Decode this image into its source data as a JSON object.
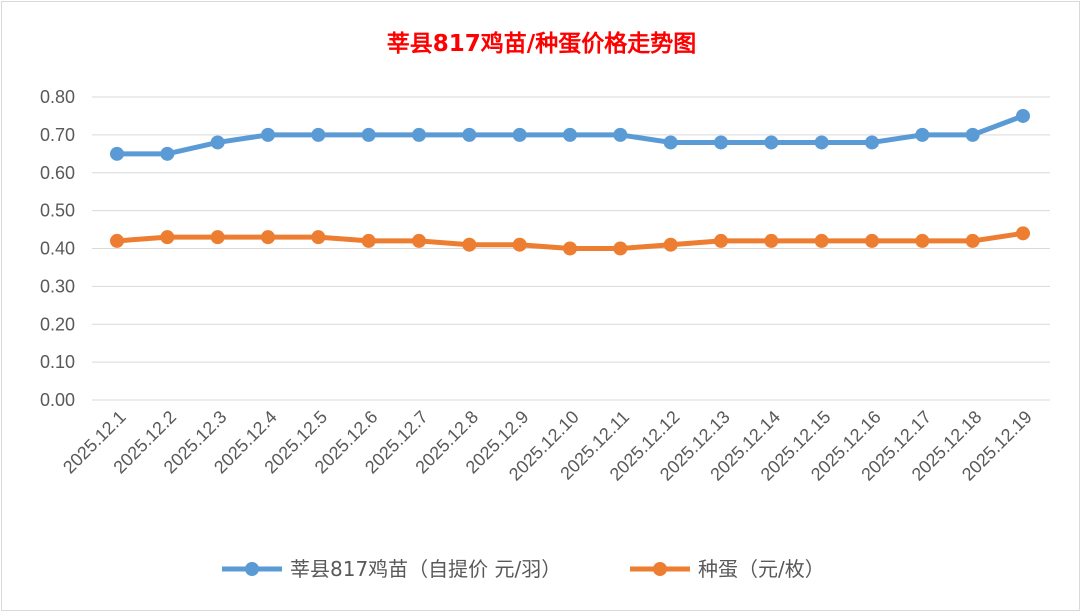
{
  "chart_data": {
    "type": "line",
    "title": "莘县817鸡苗/种蛋价格走势图",
    "categories": [
      "2025.12.1",
      "2025.12.2",
      "2025.12.3",
      "2025.12.4",
      "2025.12.5",
      "2025.12.6",
      "2025.12.7",
      "2025.12.8",
      "2025.12.9",
      "2025.12.10",
      "2025.12.11",
      "2025.12.12",
      "2025.12.13",
      "2025.12.14",
      "2025.12.15",
      "2025.12.16",
      "2025.12.17",
      "2025.12.18",
      "2025.12.19"
    ],
    "series": [
      {
        "name": "莘县817鸡苗（自提价 元/羽）",
        "color": "#5b9bd5",
        "values": [
          0.65,
          0.65,
          0.68,
          0.7,
          0.7,
          0.7,
          0.7,
          0.7,
          0.7,
          0.7,
          0.7,
          0.68,
          0.68,
          0.68,
          0.68,
          0.68,
          0.7,
          0.7,
          0.75
        ]
      },
      {
        "name": "种蛋（元/枚）",
        "color": "#ed7d31",
        "values": [
          0.42,
          0.43,
          0.43,
          0.43,
          0.43,
          0.42,
          0.42,
          0.41,
          0.41,
          0.4,
          0.4,
          0.41,
          0.42,
          0.42,
          0.42,
          0.42,
          0.42,
          0.42,
          0.44
        ]
      }
    ],
    "ylim": [
      0,
      0.8
    ],
    "yticks": [
      "0.00",
      "0.10",
      "0.20",
      "0.30",
      "0.40",
      "0.50",
      "0.60",
      "0.70",
      "0.80"
    ],
    "grid": true,
    "legend": "bottom",
    "title_color": "#ff0000"
  }
}
